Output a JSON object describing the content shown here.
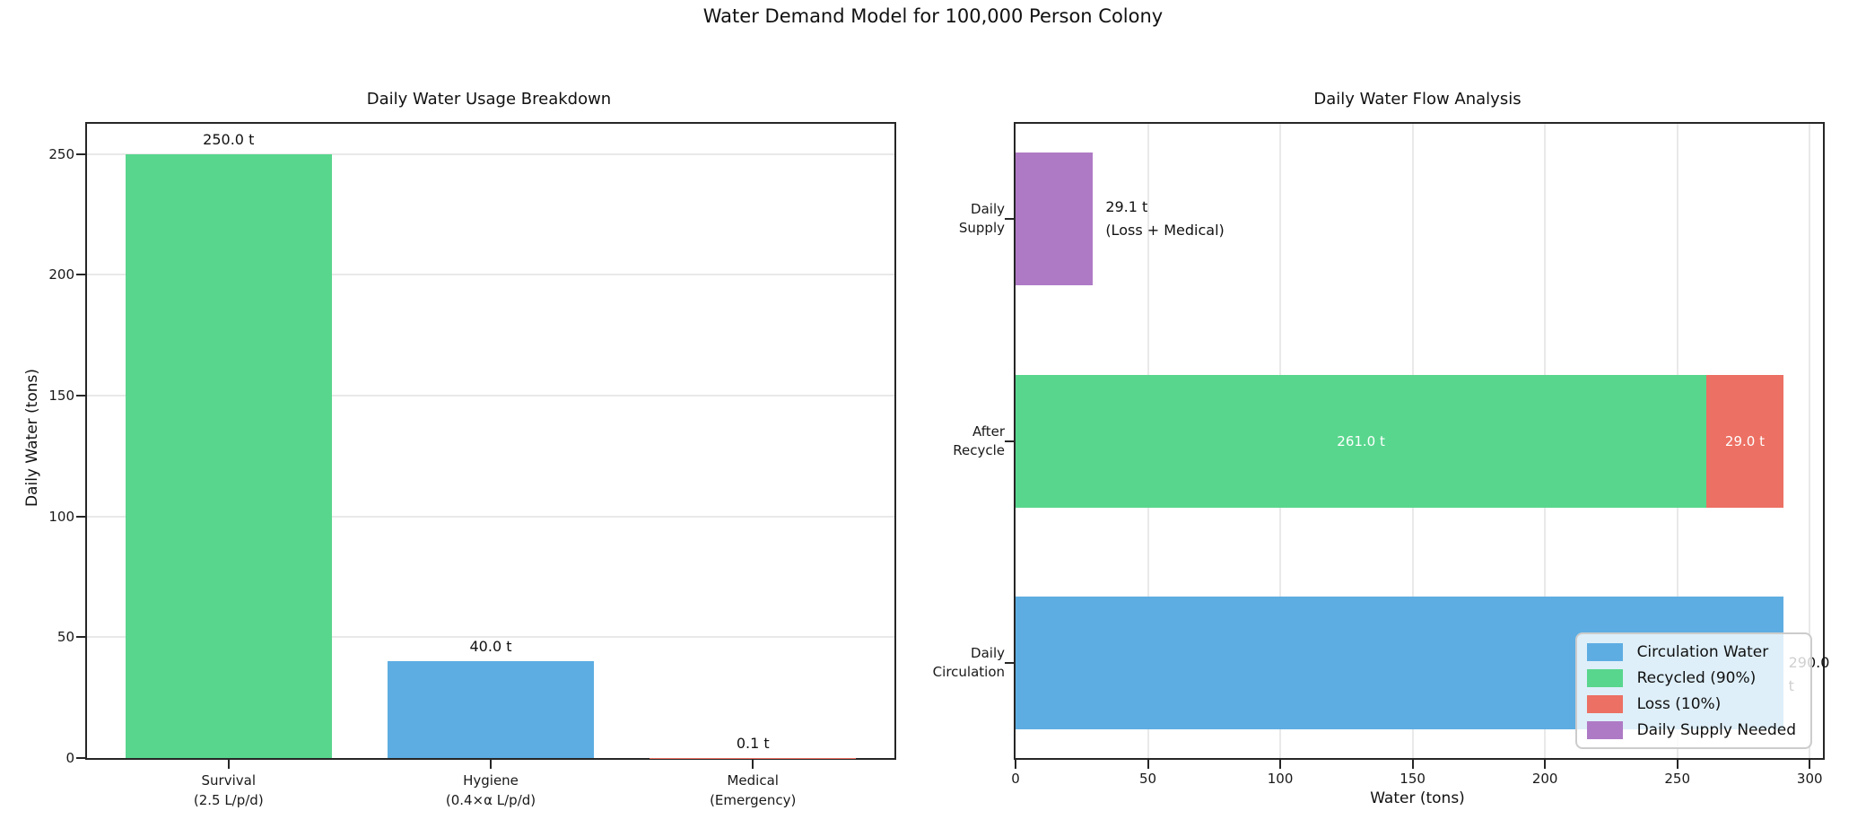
{
  "figure": {
    "suptitle": "Water Demand Model for 100,000 Person Colony"
  },
  "chart_data": [
    {
      "type": "bar",
      "title": "Daily Water Usage Breakdown",
      "xlabel": "",
      "ylabel": "Daily Water (tons)",
      "categories": [
        "Survival\n(2.5 L/p/d)",
        "Hygiene\n(0.4×α L/p/d)",
        "Medical\n(Emergency)"
      ],
      "values": [
        250.0,
        40.0,
        0.1
      ],
      "bar_labels": [
        "250.0 t",
        "40.0 t",
        "0.1 t"
      ],
      "bar_colors": [
        "#58d68d",
        "#5dade2",
        "#ec7063"
      ],
      "yticks": [
        0,
        50,
        100,
        150,
        200,
        250
      ],
      "ylim": [
        0,
        262.5
      ],
      "grid": "horizontal"
    },
    {
      "type": "bar-horizontal-stacked",
      "title": "Daily Water Flow Analysis",
      "xlabel": "Water (tons)",
      "ylabel": "",
      "categories": [
        "Daily\nSupply",
        "After\nRecycle",
        "Daily\nCirculation"
      ],
      "xticks": [
        0,
        50,
        100,
        150,
        200,
        250,
        300
      ],
      "xlim": [
        0,
        305
      ],
      "grid": "vertical",
      "segments": [
        {
          "row": 0,
          "series": "Daily Supply Needed",
          "start": 0,
          "value": 29.1,
          "color": "#af7ac5",
          "label": "",
          "label_color": ""
        },
        {
          "row": 1,
          "series": "Recycled (90%)",
          "start": 0,
          "value": 261.0,
          "color": "#58d68d",
          "label": "261.0 t",
          "label_color": "#ffffff"
        },
        {
          "row": 1,
          "series": "Loss (10%)",
          "start": 261.0,
          "value": 29.0,
          "color": "#ec7063",
          "label": "29.0 t",
          "label_color": "#ffffff"
        },
        {
          "row": 2,
          "series": "Circulation Water",
          "start": 0,
          "value": 290.0,
          "color": "#5dade2",
          "label": "",
          "label_color": ""
        }
      ],
      "annotations": [
        {
          "row": 0,
          "x": 34,
          "text": "29.1 t\n(Loss + Medical)"
        },
        {
          "row": 2,
          "x": 292,
          "text": "290.0 t"
        }
      ],
      "legend": {
        "position": "lower right",
        "entries": [
          {
            "label": "Circulation Water",
            "color": "#5dade2"
          },
          {
            "label": "Recycled (90%)",
            "color": "#58d68d"
          },
          {
            "label": "Loss (10%)",
            "color": "#ec7063"
          },
          {
            "label": "Daily Supply Needed",
            "color": "#af7ac5"
          }
        ]
      }
    }
  ]
}
